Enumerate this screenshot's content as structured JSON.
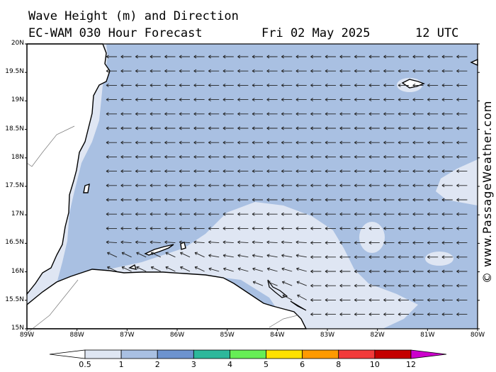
{
  "header": {
    "title_line1": "Wave Height (m) and Direction",
    "title_line2": "EC-WAM 030 Hour Forecast",
    "date": "Fri 02 May 2025",
    "time": "12 UTC"
  },
  "credit": "© www.PassageWeather.com",
  "axes": {
    "lat_labels": [
      "20N",
      "19.5N",
      "19N",
      "18.5N",
      "18N",
      "17.5N",
      "17N",
      "16.5N",
      "16N",
      "15.5N",
      "15N"
    ],
    "lon_labels": [
      "89W",
      "88W",
      "87W",
      "86W",
      "85W",
      "84W",
      "83W",
      "82W",
      "81W",
      "80W"
    ]
  },
  "colorbar": {
    "labels": [
      "0.5",
      "1",
      "2",
      "3",
      "4",
      "5",
      "6",
      "8",
      "10",
      "12"
    ],
    "colors": [
      "#dfe6f3",
      "#a9c0e2",
      "#6d93cf",
      "#2db89b",
      "#66ee55",
      "#ffe100",
      "#ff9a00",
      "#f23a3a",
      "#c40000",
      "#cc00cc"
    ]
  },
  "colors": {
    "sea_main": "#a9c0e2",
    "sea_light": "#dfe6f3",
    "land": "#ffffff",
    "arrow": "#222222"
  },
  "wave_direction": "arrows pointing west to south-west"
}
